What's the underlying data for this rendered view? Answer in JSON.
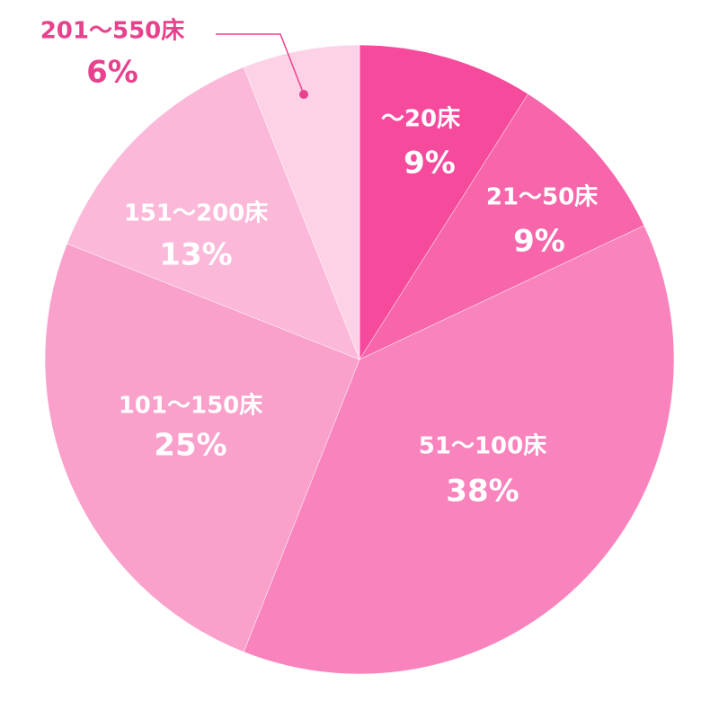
{
  "chart_data": {
    "type": "pie",
    "categories": [
      "〜20床",
      "21〜50床",
      "51〜100床",
      "101〜150床",
      "151〜200床",
      "201〜550床"
    ],
    "values": [
      9,
      9,
      38,
      25,
      13,
      6
    ],
    "value_labels": [
      "9%",
      "9%",
      "38%",
      "25%",
      "13%",
      "6%"
    ],
    "colors": [
      "#f64a9d",
      "#f766ab",
      "#f984bd",
      "#f9a0cb",
      "#fbb8d9",
      "#fdd2e6"
    ]
  }
}
